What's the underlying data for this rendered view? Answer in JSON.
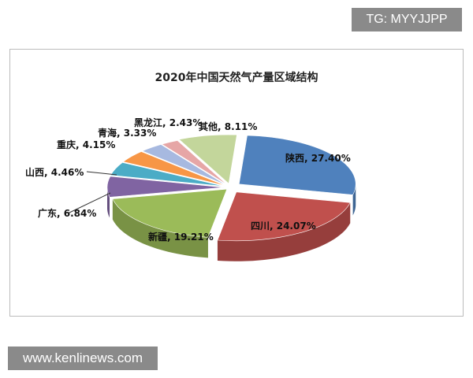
{
  "watermark": "TG: MYYJJPP",
  "site": "www.kenlinews.com",
  "chart_data": {
    "type": "pie",
    "title": "2020年中国天然气产量区域结构",
    "categories": [
      "陕西",
      "四川",
      "新疆",
      "广东",
      "山西",
      "重庆",
      "青海",
      "黑龙江",
      "其他"
    ],
    "values": [
      27.4,
      24.07,
      19.21,
      6.84,
      4.46,
      4.15,
      3.33,
      2.43,
      8.11
    ],
    "labels": [
      "陕西, 27.40%",
      "四川, 24.07%",
      "新疆, 19.21%",
      "广东, 6.84%",
      "山西, 4.46%",
      "重庆, 4.15%",
      "青海, 3.33%",
      "黑龙江, 2.43%",
      "其他, 8.11%"
    ],
    "colors": [
      "#4f81bd",
      "#c0504d",
      "#9bbb59",
      "#8064a2",
      "#4bacc6",
      "#f79646",
      "#a7b9e0",
      "#e6a6a6",
      "#c3d69b"
    ],
    "style": "3d-exploded"
  }
}
